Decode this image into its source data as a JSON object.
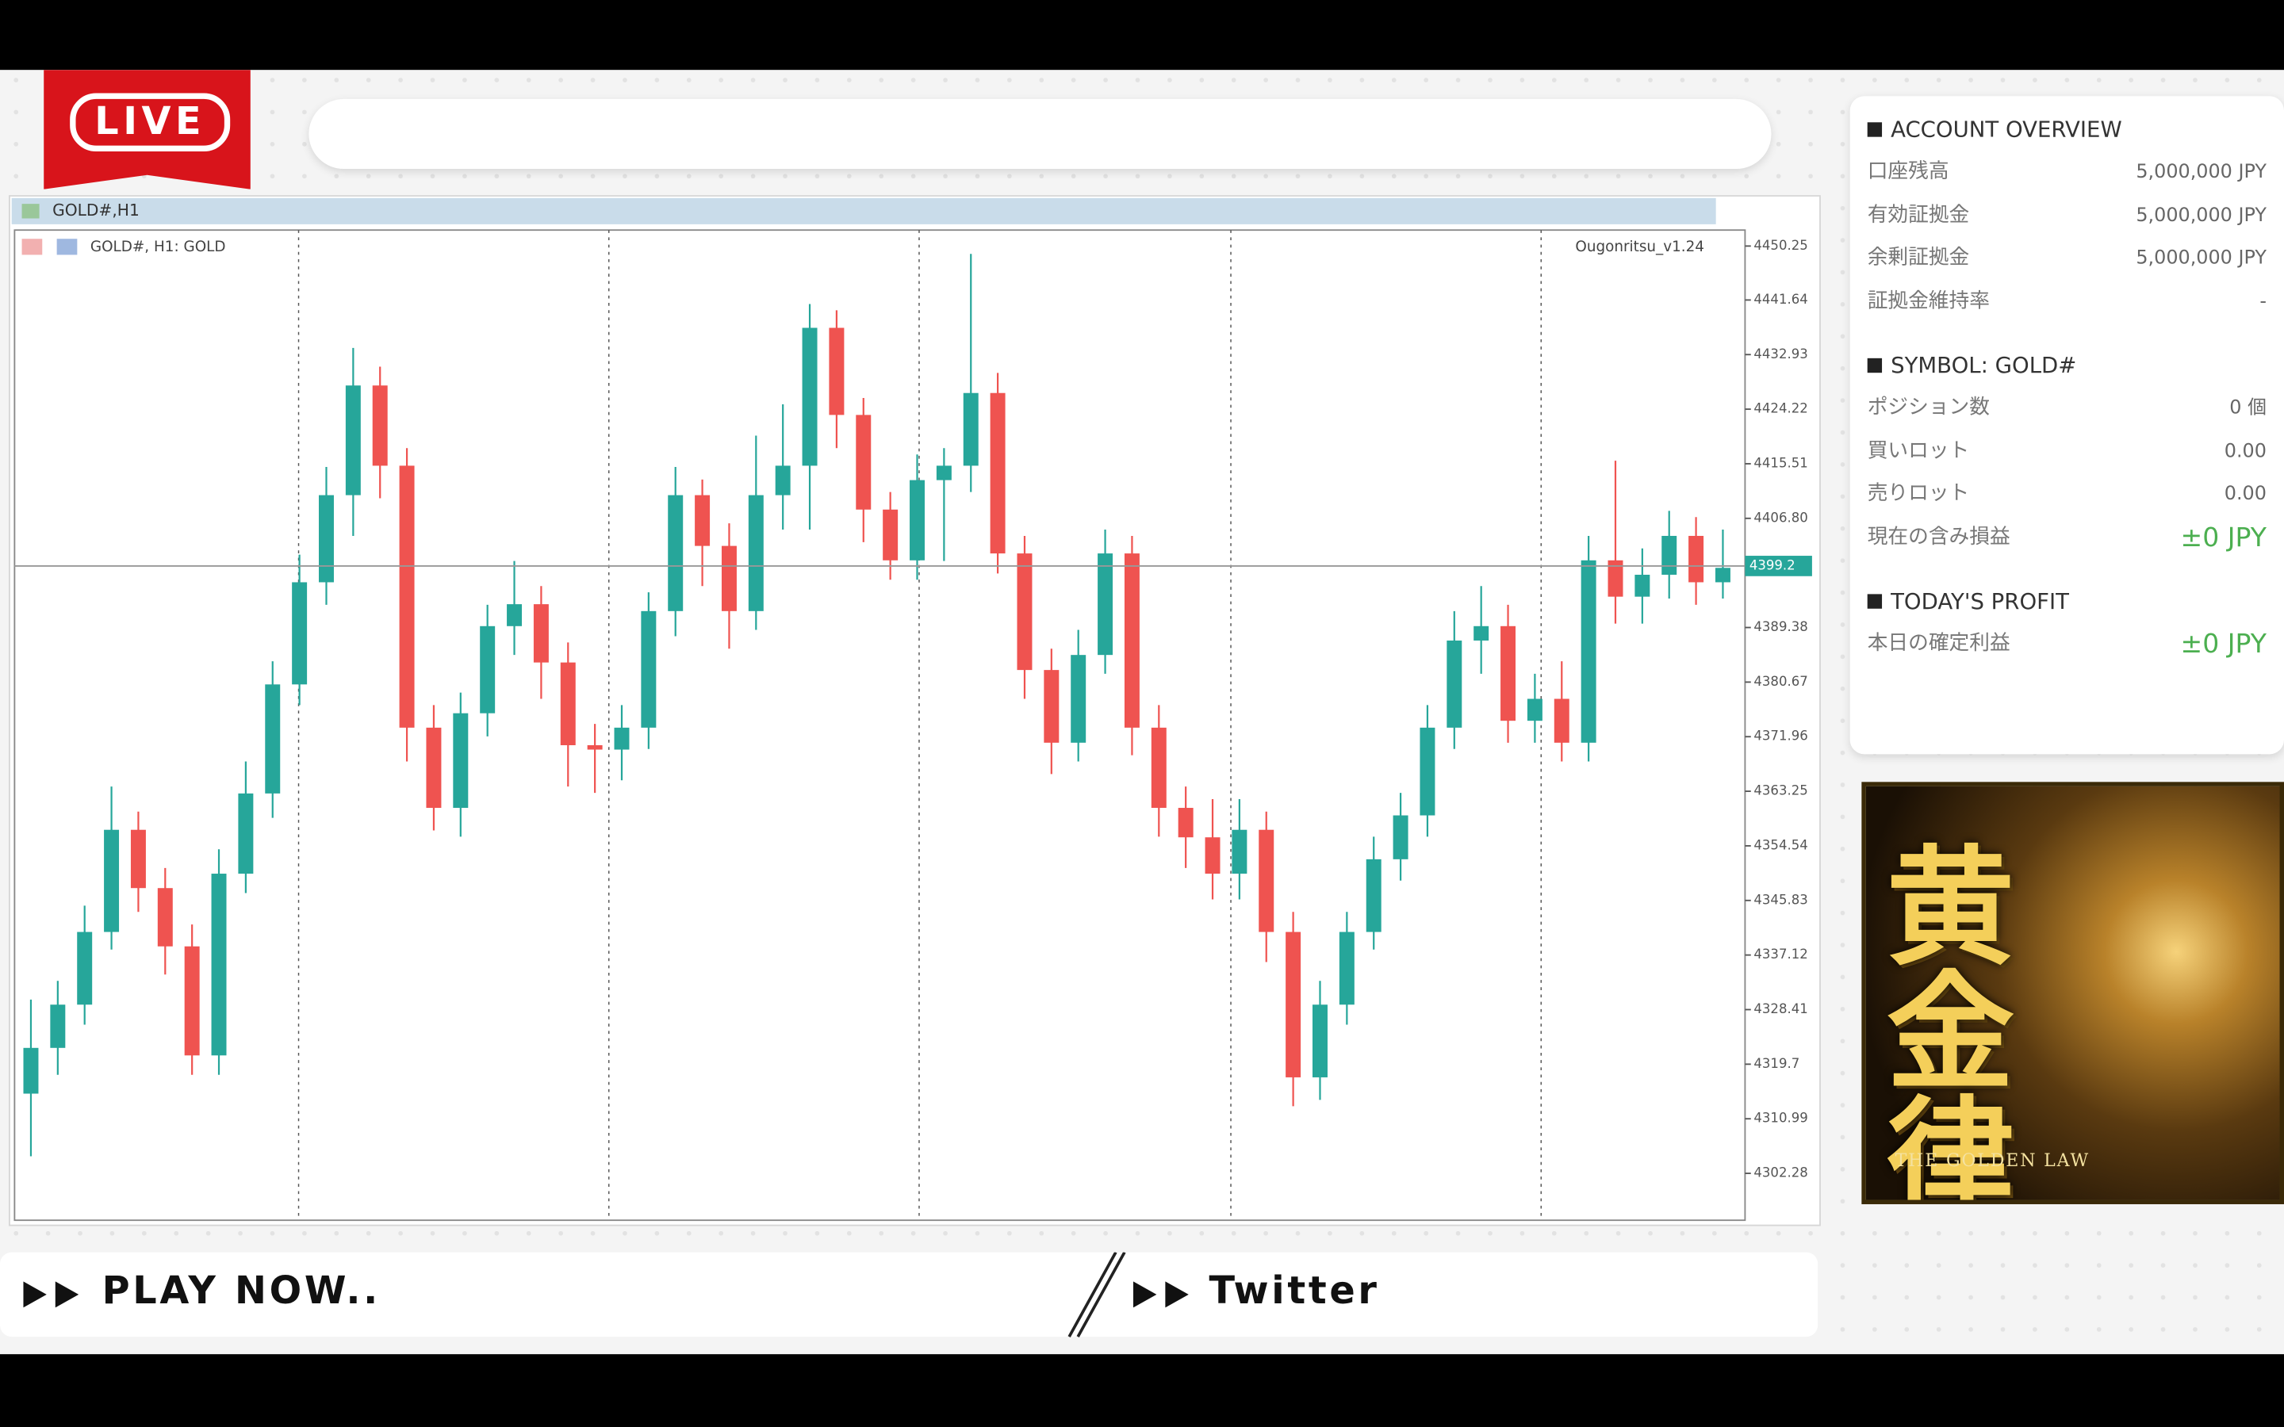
{
  "header": {
    "live": "LIVE"
  },
  "chart_window": {
    "title": "GOLD#,H1"
  },
  "chart_data": {
    "type": "candlestick",
    "label": "GOLD#, H1: GOLD",
    "indicator": "Ougonritsu_v1.24",
    "up_color": "#26a69a",
    "down_color": "#ef5350",
    "ylim": [
      4294.8,
      4452.8
    ],
    "yticks": [
      4450.25,
      4441.64,
      4432.93,
      4424.22,
      4415.51,
      {
        "value": 4406.8,
        "label": "4406.80"
      },
      4389.38,
      4380.67,
      4371.96,
      4363.25,
      4354.54,
      4345.83,
      4337.12,
      4328.41,
      4319.7,
      4310.99,
      4302.28
    ],
    "current_price": 4399.2,
    "open": [
      4315.0,
      4322.3,
      4329.2,
      4340.8,
      4357.1,
      4347.8,
      4338.5,
      4321.1,
      4350.1,
      4362.9,
      4380.3,
      4396.6,
      4410.5,
      4428.0,
      4415.2,
      4373.4,
      4360.6,
      4375.7,
      4389.6,
      4393.1,
      4383.8,
      4370.6,
      4369.9,
      4373.4,
      4392.0,
      4410.5,
      4402.4,
      4392.0,
      4410.5,
      4415.2,
      4437.2,
      4423.3,
      4408.2,
      4400.1,
      4412.9,
      4415.2,
      4426.8,
      4401.2,
      4382.6,
      4371.0,
      4385.0,
      4401.2,
      4373.4,
      4360.6,
      4355.9,
      4350.1,
      4357.1,
      4340.8,
      4317.6,
      4329.2,
      4340.8,
      4352.4,
      4359.4,
      4373.4,
      4387.3,
      4389.6,
      4374.5,
      4378.0,
      4371.0,
      4400.1,
      4394.3,
      4397.8,
      4404.0,
      4396.6
    ],
    "high": [
      4330,
      4333,
      4345,
      4364,
      4360,
      4351,
      4342,
      4354,
      4368,
      4384,
      4401,
      4415,
      4434,
      4431,
      4418,
      4377,
      4379,
      4393,
      4400,
      4396,
      4387,
      4374,
      4377,
      4395,
      4415,
      4413,
      4406,
      4420,
      4425,
      4441,
      4440,
      4426,
      4411,
      4417,
      4418,
      4449,
      4430,
      4404,
      4386,
      4389,
      4405,
      4404,
      4377,
      4364,
      4362,
      4362,
      4360,
      4344,
      4333,
      4344,
      4356,
      4363,
      4377,
      4392,
      4396,
      4393,
      4382,
      4384,
      4404,
      4416,
      4402,
      4408,
      4407,
      4405
    ],
    "low": [
      4305,
      4318,
      4326,
      4338,
      4344,
      4334,
      4318,
      4318,
      4347,
      4359,
      4377,
      4393,
      4404,
      4410,
      4368,
      4357,
      4356,
      4372,
      4385,
      4378,
      4364,
      4363,
      4365,
      4370,
      4388,
      4396,
      4386,
      4389,
      4405,
      4405,
      4418,
      4403,
      4397,
      4397,
      4400,
      4411,
      4398,
      4378,
      4366,
      4368,
      4382,
      4369,
      4356,
      4351,
      4346,
      4346,
      4336,
      4313,
      4314,
      4326,
      4338,
      4349,
      4356,
      4370,
      4382,
      4371,
      4371,
      4368,
      4368,
      4390,
      4390,
      4394,
      4393,
      4394
    ],
    "close": [
      4322.3,
      4329.2,
      4340.8,
      4357.1,
      4347.8,
      4338.5,
      4321.1,
      4350.1,
      4362.9,
      4380.3,
      4396.6,
      4410.5,
      4428.0,
      4415.2,
      4373.4,
      4360.6,
      4375.7,
      4389.6,
      4393.1,
      4383.8,
      4370.6,
      4369.9,
      4373.4,
      4392.0,
      4410.5,
      4402.4,
      4392.0,
      4410.5,
      4415.2,
      4437.2,
      4423.3,
      4408.2,
      4400.1,
      4412.9,
      4415.2,
      4426.8,
      4401.2,
      4382.6,
      4371.0,
      4385.0,
      4401.2,
      4373.4,
      4360.6,
      4355.9,
      4350.1,
      4357.1,
      4340.8,
      4317.6,
      4329.2,
      4340.8,
      4352.4,
      4359.4,
      4373.4,
      4387.3,
      4389.6,
      4374.5,
      4378.0,
      4371.0,
      4400.1,
      4394.3,
      4397.8,
      4404.0,
      4396.6,
      4398.9
    ]
  },
  "account": {
    "title": "ACCOUNT OVERVIEW",
    "rows": [
      [
        "口座残高",
        "5,000,000 JPY"
      ],
      [
        "有効証拠金",
        "5,000,000 JPY"
      ],
      [
        "余剰証拠金",
        "5,000,000 JPY"
      ],
      [
        "証拠金維持率",
        "-"
      ]
    ]
  },
  "symbol": {
    "title": "SYMBOL: GOLD#",
    "rows": [
      [
        "ポジション数",
        "0 個"
      ],
      [
        "買いロット",
        "0.00"
      ],
      [
        "売りロット",
        "0.00"
      ],
      [
        "現在の含み損益",
        "±0 JPY"
      ]
    ]
  },
  "profit": {
    "title": "TODAY'S PROFIT",
    "rows": [
      [
        "本日の確定利益",
        "±0 JPY"
      ]
    ]
  },
  "banner": {
    "title": "黄金律",
    "subtitle": "THE GOLDEN LAW"
  },
  "footer": {
    "play": "PLAY NOW..",
    "twitter": "Twitter"
  }
}
